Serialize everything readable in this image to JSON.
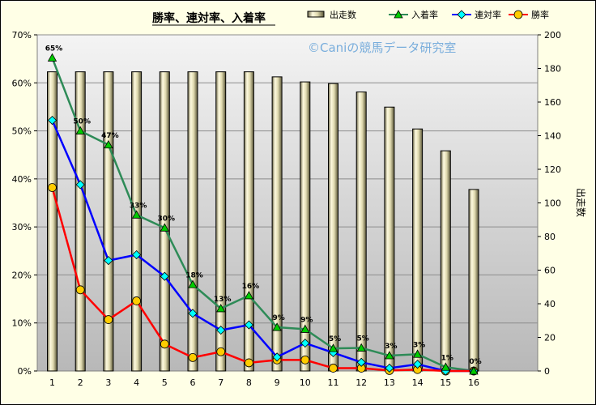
{
  "chart_data": {
    "type": "bar+line",
    "title": "勝率、連対率、入着率",
    "watermark": "©Caniの競馬データ研究室",
    "x": [
      1,
      2,
      3,
      4,
      5,
      6,
      7,
      8,
      9,
      10,
      11,
      12,
      13,
      14,
      15,
      16
    ],
    "y_left": {
      "ylim": [
        0,
        70
      ],
      "ticks": [
        "0%",
        "10%",
        "20%",
        "30%",
        "40%",
        "50%",
        "60%",
        "70%"
      ]
    },
    "y_right": {
      "label": "出走数",
      "ylim": [
        0,
        200
      ],
      "ticks": [
        0,
        20,
        40,
        60,
        80,
        100,
        120,
        140,
        160,
        180,
        200
      ]
    },
    "legend": {
      "position": "top-right"
    },
    "grid": true,
    "series": [
      {
        "name": "出走数",
        "kind": "bar",
        "axis": "right",
        "color": "#d8d2a8",
        "values": [
          178,
          178,
          178,
          178,
          178,
          178,
          178,
          178,
          175,
          172,
          171,
          166,
          157,
          144,
          131,
          108
        ]
      },
      {
        "name": "入着率",
        "kind": "line",
        "axis": "left",
        "color": "#2e8b57",
        "marker": "triangle",
        "marker_color": "#00cc00",
        "values": [
          65.2,
          50.0,
          47.1,
          32.5,
          29.8,
          18.0,
          13.0,
          15.7,
          9.1,
          8.7,
          4.7,
          4.8,
          3.2,
          3.5,
          0.8,
          0
        ],
        "data_labels": [
          "65%",
          "50%",
          "47%",
          "33%",
          "30%",
          "18%",
          "13%",
          "16%",
          "9%",
          "9%",
          "5%",
          "5%",
          "3%",
          "3%",
          "1%",
          "0%"
        ]
      },
      {
        "name": "連対率",
        "kind": "line",
        "axis": "left",
        "color": "#0000ff",
        "marker": "diamond",
        "marker_color": "#00ffff",
        "values": [
          52.2,
          38.8,
          23.0,
          24.2,
          19.7,
          12.0,
          8.5,
          9.6,
          2.9,
          5.8,
          3.8,
          1.8,
          0.6,
          1.4,
          0,
          0
        ]
      },
      {
        "name": "勝率",
        "kind": "line",
        "axis": "left",
        "color": "#ff0000",
        "marker": "circle",
        "marker_color": "#ffcc00",
        "values": [
          38.2,
          16.9,
          10.7,
          14.6,
          5.6,
          2.8,
          4.0,
          1.7,
          2.3,
          2.3,
          0.6,
          0.6,
          0.1,
          0.3,
          0,
          0
        ]
      }
    ]
  }
}
